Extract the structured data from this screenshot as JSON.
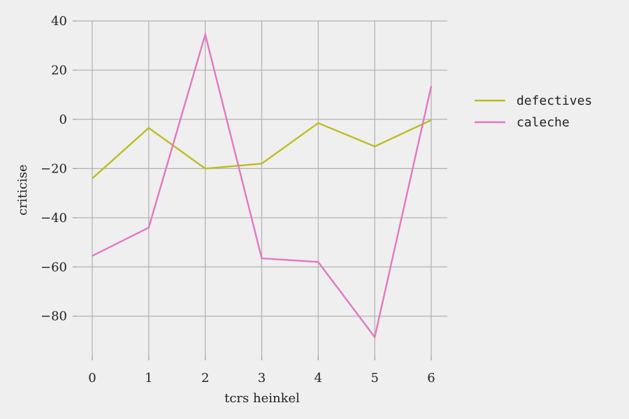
{
  "chart_data": {
    "type": "line",
    "title": "",
    "xlabel": "tcrs heinkel",
    "ylabel": "criticise",
    "x": [
      0,
      1,
      2,
      3,
      4,
      5,
      6
    ],
    "x_ticks": [
      "0",
      "1",
      "2",
      "3",
      "4",
      "5",
      "6"
    ],
    "xlim": [
      0,
      6
    ],
    "y_ticks": [
      "40",
      "20",
      "0",
      "−20",
      "−40",
      "−60",
      "−80"
    ],
    "y_tick_values": [
      40,
      20,
      0,
      -20,
      -40,
      -60,
      -80
    ],
    "ylim": [
      -92,
      40
    ],
    "grid": true,
    "legend_position": "right",
    "background": "#efefef",
    "series": [
      {
        "name": "defectives",
        "color": "#bcbd22",
        "values": [
          -24,
          -3.5,
          -20,
          -18,
          -1.5,
          -11,
          -0.3
        ]
      },
      {
        "name": "caleche",
        "color": "#e377c2",
        "values": [
          -55.5,
          -44,
          34.5,
          -56.5,
          -58,
          -88.5,
          13.5
        ]
      }
    ]
  }
}
